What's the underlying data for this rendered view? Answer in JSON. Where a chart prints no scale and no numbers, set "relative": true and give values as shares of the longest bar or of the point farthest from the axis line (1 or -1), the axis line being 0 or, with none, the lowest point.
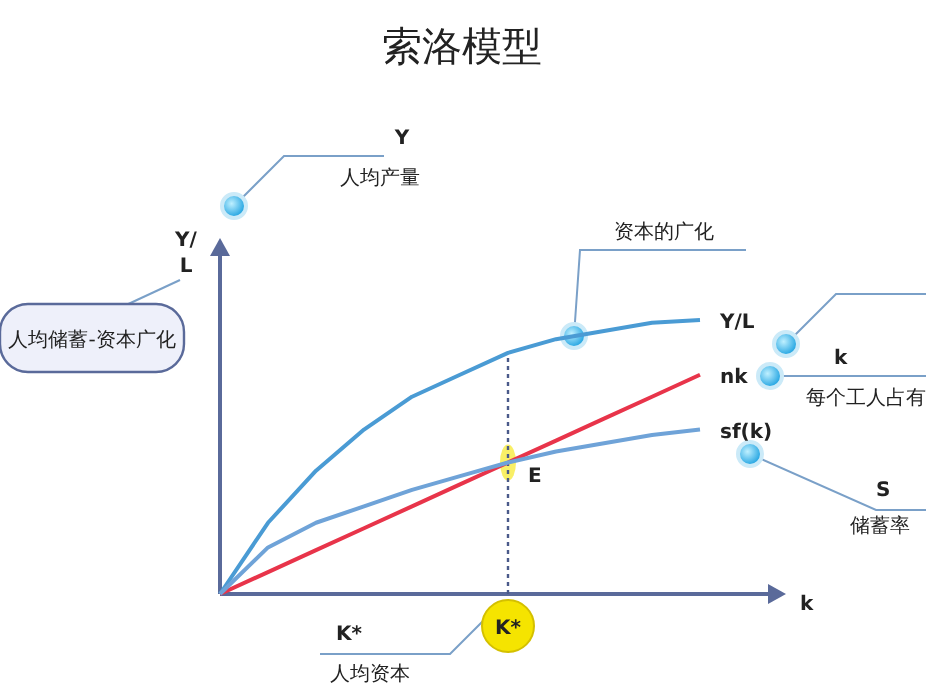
{
  "chart_data": {
    "type": "line",
    "title": "索洛模型",
    "xlabel": "k",
    "ylabel": "Y/L",
    "relative": true,
    "legend": "right",
    "marker": "none",
    "line_style": "solid",
    "categories": [
      null,
      null,
      null,
      null,
      null,
      null,
      null,
      null,
      null,
      null,
      null
    ],
    "series": [
      {
        "name": "Y/L",
        "color": "#4a9bd4",
        "values": [
          0,
          0.26,
          0.45,
          0.6,
          0.72,
          0.8,
          0.88,
          0.93,
          0.96,
          0.99,
          1
        ]
      },
      {
        "name": "nk",
        "color": "#e8344a",
        "values": [
          0,
          0.08,
          0.16,
          0.24,
          0.32,
          0.4,
          0.48,
          0.56,
          0.64,
          0.72,
          0.8
        ]
      },
      {
        "name": "sf(k)",
        "color": "#6fa3d8",
        "values": [
          0,
          0.17,
          0.26,
          0.32,
          0.38,
          0.43,
          0.48,
          0.52,
          0.55,
          0.58,
          0.6
        ]
      }
    ],
    "annotations": [
      "Y",
      "人均产量",
      "人均储蓄-资本广化",
      "资本的广化",
      "k",
      "每个工人占有",
      "S",
      "储蓄率",
      "E",
      "K*",
      "人均资本",
      "K*"
    ]
  }
}
